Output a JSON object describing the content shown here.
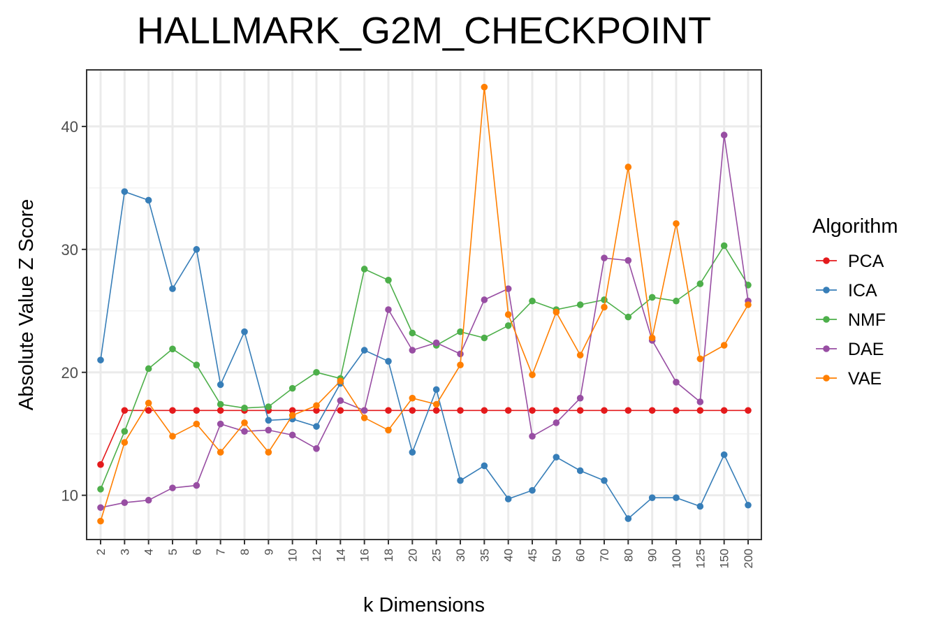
{
  "chart_data": {
    "type": "line",
    "title": "HALLMARK_G2M_CHECKPOINT",
    "xlabel": "k Dimensions",
    "ylabel": "Absolute Value Z Score",
    "categories": [
      "2",
      "3",
      "4",
      "5",
      "6",
      "7",
      "8",
      "9",
      "10",
      "12",
      "14",
      "16",
      "18",
      "20",
      "25",
      "30",
      "35",
      "40",
      "45",
      "50",
      "60",
      "70",
      "80",
      "90",
      "100",
      "125",
      "150",
      "200"
    ],
    "ylim": [
      6.4,
      44.6
    ],
    "yticks": [
      10,
      20,
      30,
      40
    ],
    "grid": true,
    "legend": {
      "title": "Algorithm",
      "position": "right"
    },
    "series": [
      {
        "name": "PCA",
        "color": "#E41A1C",
        "values": [
          12.5,
          16.9,
          16.9,
          16.9,
          16.9,
          16.9,
          16.9,
          16.9,
          16.9,
          16.9,
          16.9,
          16.9,
          16.9,
          16.9,
          16.9,
          16.9,
          16.9,
          16.9,
          16.9,
          16.9,
          16.9,
          16.9,
          16.9,
          16.9,
          16.9,
          16.9,
          16.9,
          16.9
        ]
      },
      {
        "name": "ICA",
        "color": "#377EB8",
        "values": [
          21.0,
          34.7,
          34.0,
          26.8,
          30.0,
          19.0,
          23.3,
          16.1,
          16.2,
          15.6,
          19.1,
          21.8,
          20.9,
          13.5,
          18.6,
          11.2,
          12.4,
          9.7,
          10.4,
          13.1,
          12.0,
          11.2,
          8.1,
          9.8,
          9.8,
          9.1,
          13.3,
          9.2
        ]
      },
      {
        "name": "NMF",
        "color": "#4DAF4A",
        "values": [
          10.5,
          15.2,
          20.3,
          21.9,
          20.6,
          17.4,
          17.1,
          17.2,
          18.7,
          20.0,
          19.5,
          28.4,
          27.5,
          23.2,
          22.2,
          23.3,
          22.8,
          23.8,
          25.8,
          25.1,
          25.5,
          25.9,
          24.5,
          26.1,
          25.8,
          27.2,
          30.3,
          27.1
        ]
      },
      {
        "name": "DAE",
        "color": "#984EA3",
        "values": [
          9.0,
          9.4,
          9.6,
          10.6,
          10.8,
          15.8,
          15.2,
          15.3,
          14.9,
          13.8,
          17.7,
          16.9,
          25.1,
          21.8,
          22.4,
          21.5,
          25.9,
          26.8,
          14.8,
          15.9,
          17.9,
          29.3,
          29.1,
          22.6,
          19.2,
          17.6,
          39.3,
          25.8
        ]
      },
      {
        "name": "VAE",
        "color": "#FF7F00",
        "values": [
          7.9,
          14.3,
          17.5,
          14.8,
          15.8,
          13.5,
          15.9,
          13.5,
          16.5,
          17.3,
          19.3,
          16.3,
          15.3,
          17.9,
          17.4,
          20.6,
          43.2,
          24.7,
          19.8,
          24.9,
          21.4,
          25.3,
          36.7,
          22.8,
          32.1,
          21.1,
          22.2,
          25.5
        ]
      }
    ]
  }
}
